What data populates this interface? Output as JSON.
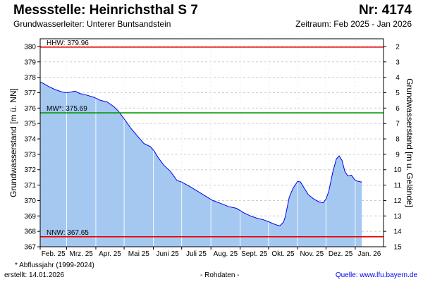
{
  "header": {
    "title": "Messstelle: Heinrichsthal S 7",
    "nr": "Nr: 4174",
    "aquifer": "Grundwasserleiter:   Unterer Buntsandstein",
    "period": "Zeitraum: Feb 2025 - Jan 2026"
  },
  "footer": {
    "footnote": "* Abflussjahr (1999-2024)",
    "created": "erstellt:  14.01.2026",
    "rawdata": "- Rohdaten -",
    "source": "Quelle: www.lfu.bayern.de"
  },
  "colors": {
    "fill": "#a4c8f0",
    "line": "#0000ee",
    "hhw": "#ee0000",
    "nnw": "#ee0000",
    "mw": "#009900",
    "grid": "#cccccc",
    "monthGrid": "#ffffff"
  },
  "chart_data": {
    "type": "area",
    "ylabel": "Grundwasserstand [m ü. NN]",
    "y2label": "Grundwasserstand [m u. Gelände]",
    "ylim": [
      367,
      380.5
    ],
    "yticks": [
      367,
      368,
      369,
      370,
      371,
      372,
      373,
      374,
      375,
      376,
      377,
      378,
      379,
      380
    ],
    "y2ticks": [
      2,
      3,
      4,
      5,
      6,
      7,
      8,
      9,
      10,
      11,
      12,
      13,
      14,
      15
    ],
    "y2_offset": 382,
    "xticks": [
      "Feb. 25",
      "Mrz. 25",
      "Apr. 25",
      "Mai 25",
      "Juni 25",
      "Juli 25",
      "Aug. 25",
      "Sept. 25",
      "Okt. 25",
      "Nov. 25",
      "Dez. 25",
      "Jan. 26"
    ],
    "xlim": [
      "2025-02-01",
      "2026-01-31"
    ],
    "grid": true,
    "reference_lines": [
      {
        "key": "hhw",
        "label": "HHW: 379.96",
        "value": 379.96
      },
      {
        "key": "mw",
        "label": "MW*: 375.69",
        "value": 375.69
      },
      {
        "key": "nnw",
        "label": "NNW: 367.65",
        "value": 367.65
      }
    ],
    "series": [
      {
        "x": [
          "2025-02-01",
          "2025-02-03",
          "2025-02-10",
          "2025-02-17",
          "2025-02-24",
          "2025-03-01",
          "2025-03-06",
          "2025-03-10",
          "2025-03-15",
          "2025-03-22",
          "2025-03-30",
          "2025-04-06",
          "2025-04-13",
          "2025-04-20",
          "2025-04-25",
          "2025-05-01",
          "2025-05-08",
          "2025-05-15",
          "2025-05-22",
          "2025-05-29",
          "2025-06-02",
          "2025-06-06",
          "2025-06-12",
          "2025-06-19",
          "2025-06-26",
          "2025-07-01",
          "2025-07-10",
          "2025-07-18",
          "2025-07-26",
          "2025-08-03",
          "2025-08-12",
          "2025-08-20",
          "2025-08-28",
          "2025-09-05",
          "2025-09-12",
          "2025-09-19",
          "2025-09-26",
          "2025-10-02",
          "2025-10-08",
          "2025-10-13",
          "2025-10-17",
          "2025-10-19",
          "2025-10-23",
          "2025-10-27",
          "2025-11-01",
          "2025-11-04",
          "2025-11-08",
          "2025-11-12",
          "2025-11-18",
          "2025-11-24",
          "2025-11-28",
          "2025-12-01",
          "2025-12-04",
          "2025-12-08",
          "2025-12-12",
          "2025-12-15",
          "2025-12-18",
          "2025-12-21",
          "2025-12-24",
          "2025-12-28",
          "2026-01-01",
          "2026-01-04",
          "2026-01-08"
        ],
        "values": [
          377.7,
          377.65,
          377.4,
          377.2,
          377.05,
          377.0,
          377.05,
          377.1,
          376.95,
          376.85,
          376.7,
          376.5,
          376.4,
          376.1,
          375.8,
          375.3,
          374.7,
          374.2,
          373.7,
          373.5,
          373.2,
          372.8,
          372.3,
          371.9,
          371.3,
          371.2,
          370.9,
          370.6,
          370.3,
          370.0,
          369.8,
          369.6,
          369.5,
          369.2,
          369.0,
          368.85,
          368.75,
          368.6,
          368.45,
          368.35,
          368.6,
          369.0,
          370.2,
          370.8,
          371.25,
          371.2,
          370.8,
          370.4,
          370.1,
          369.9,
          369.85,
          370.1,
          370.6,
          371.8,
          372.7,
          372.9,
          372.6,
          371.9,
          371.6,
          371.65,
          371.3,
          371.25,
          371.2
        ]
      }
    ]
  }
}
